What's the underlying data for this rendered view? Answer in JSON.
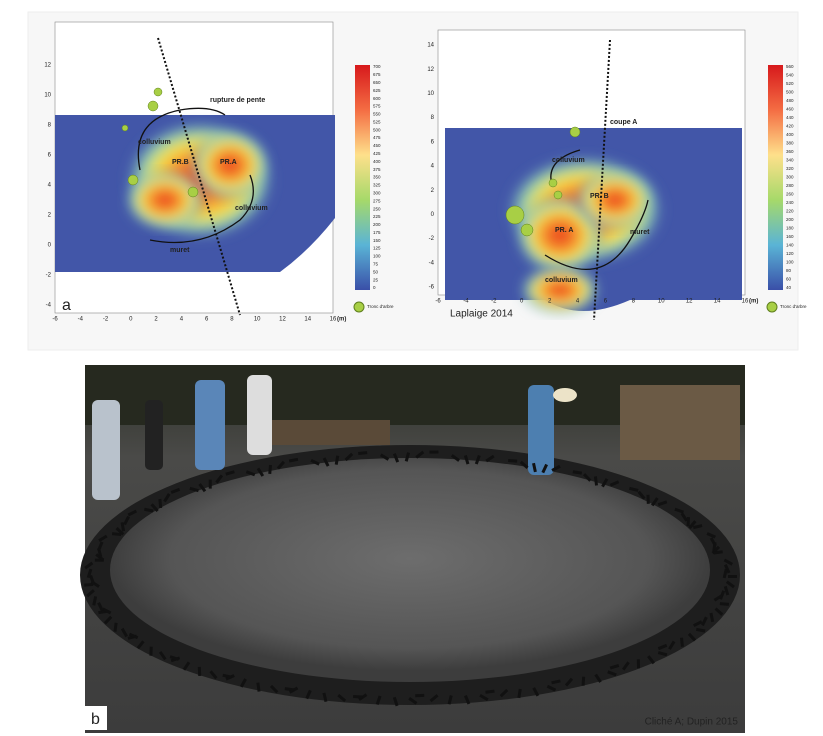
{
  "panel_a": {
    "letter": "a",
    "left_map": {
      "xticks": [
        -6,
        -4,
        -2,
        0,
        2,
        4,
        6,
        8,
        10,
        12,
        14,
        16
      ],
      "yticks": [
        12,
        10,
        8,
        6,
        4,
        2,
        0,
        -2,
        -4
      ],
      "unit": "(m)",
      "labels": [
        "rupture de pente",
        "colluvium",
        "PR.B",
        "PR.A",
        "colluvium",
        "muret"
      ],
      "colorbar_ticks": [
        700,
        675,
        650,
        625,
        600,
        575,
        550,
        525,
        500,
        475,
        450,
        425,
        400,
        375,
        350,
        325,
        300,
        275,
        250,
        225,
        200,
        175,
        150,
        125,
        100,
        75,
        50,
        25,
        0
      ],
      "legend": "Tronc d'arbre"
    },
    "right_map": {
      "xticks": [
        -6,
        -4,
        -2,
        0,
        2,
        4,
        6,
        8,
        10,
        12,
        14,
        16
      ],
      "yticks": [
        14,
        12,
        10,
        8,
        6,
        4,
        2,
        0,
        -2,
        -4,
        -6
      ],
      "unit": "(m)",
      "labels": [
        "coupe A",
        "colluvium",
        "PR. B",
        "PR. A",
        "muret",
        "colluvium"
      ],
      "colorbar_ticks": [
        560,
        540,
        520,
        500,
        480,
        460,
        440,
        420,
        400,
        380,
        360,
        340,
        320,
        300,
        280,
        260,
        240,
        220,
        200,
        180,
        160,
        140,
        120,
        100,
        80,
        60,
        40
      ],
      "legend": "Tronc d'arbre",
      "credit": "Laplaige 2014"
    }
  },
  "panel_b": {
    "letter": "b",
    "credit": "Cliché A; Dupin 2015"
  }
}
